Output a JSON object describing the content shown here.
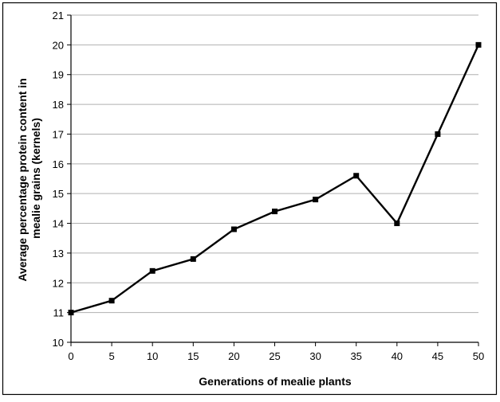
{
  "chart_data": {
    "type": "line",
    "x": [
      0,
      5,
      10,
      15,
      20,
      25,
      30,
      35,
      40,
      45,
      50
    ],
    "series": [
      {
        "values": [
          11,
          11.4,
          12.4,
          12.8,
          13.8,
          14.4,
          14.8,
          15.6,
          14,
          17,
          20
        ]
      }
    ],
    "xlabel": "Generations of mealie plants",
    "ylabel_lines": [
      "Average percentage protein content in",
      "mealie grains (kernels)"
    ],
    "xlim": [
      0,
      50
    ],
    "ylim": [
      10,
      21
    ],
    "xticks": [
      "0",
      "5",
      "10",
      "15",
      "20",
      "25",
      "30",
      "35",
      "40",
      "45",
      "50"
    ],
    "yticks": [
      "10",
      "11",
      "12",
      "13",
      "14",
      "15",
      "16",
      "17",
      "18",
      "19",
      "20",
      "21"
    ],
    "grid": "horizontal",
    "legend": "none",
    "line_color": "#000000",
    "grid_color": "#b0b0b0"
  }
}
